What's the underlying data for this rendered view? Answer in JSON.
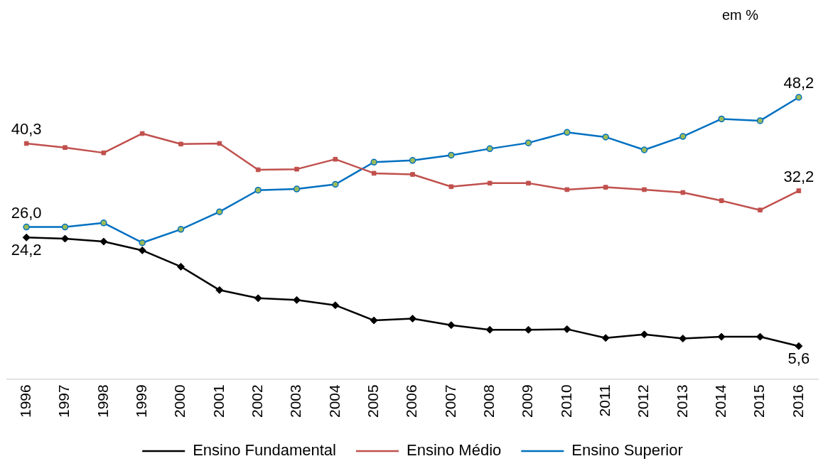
{
  "chart_data": {
    "type": "line",
    "categories": [
      "1996",
      "1997",
      "1998",
      "1999",
      "2000",
      "2001",
      "2002",
      "2003",
      "2004",
      "2005",
      "2006",
      "2007",
      "2008",
      "2009",
      "2010",
      "2011",
      "2012",
      "2013",
      "2014",
      "2015",
      "2016"
    ],
    "tick_labels": "x",
    "grid": false,
    "legend": "bottom",
    "line_style": "solid",
    "annotations": [
      "em %"
    ],
    "series": [
      {
        "name": "Ensino Fundamental",
        "color": "#000000",
        "marker": "diamond",
        "values": [
          24.2,
          24.0,
          23.5,
          22.0,
          19.2,
          15.2,
          13.8,
          13.5,
          12.6,
          10.0,
          10.3,
          9.2,
          8.4,
          8.4,
          8.5,
          7.0,
          7.6,
          6.9,
          7.2,
          7.2,
          5.6
        ],
        "value_labels": [
          "24,2",
          null,
          null,
          null,
          null,
          null,
          null,
          null,
          null,
          null,
          null,
          null,
          null,
          null,
          null,
          null,
          null,
          null,
          null,
          null,
          "5,6"
        ]
      },
      {
        "name": "Ensino Médio",
        "color": "#c0504d",
        "marker": "square",
        "values": [
          40.3,
          39.6,
          38.7,
          42.0,
          40.2,
          40.3,
          35.8,
          35.9,
          37.6,
          35.2,
          35.0,
          32.9,
          33.5,
          33.5,
          32.4,
          32.8,
          32.4,
          31.9,
          30.5,
          28.9,
          32.2
        ],
        "value_labels": [
          "40,3",
          null,
          null,
          null,
          null,
          null,
          null,
          null,
          null,
          null,
          null,
          null,
          null,
          null,
          null,
          null,
          null,
          null,
          null,
          null,
          "32,2"
        ]
      },
      {
        "name": "Ensino Superior",
        "color": "#0070c0",
        "marker": "circle",
        "values": [
          26.0,
          26.0,
          26.7,
          23.3,
          25.6,
          28.6,
          32.3,
          32.5,
          33.3,
          37.1,
          37.4,
          38.3,
          39.4,
          40.4,
          42.2,
          41.4,
          39.2,
          41.5,
          44.5,
          44.2,
          48.2
        ],
        "value_labels": [
          "26,0",
          null,
          null,
          null,
          null,
          null,
          null,
          null,
          null,
          null,
          null,
          null,
          null,
          null,
          null,
          null,
          null,
          null,
          null,
          null,
          "48,2"
        ]
      }
    ]
  }
}
